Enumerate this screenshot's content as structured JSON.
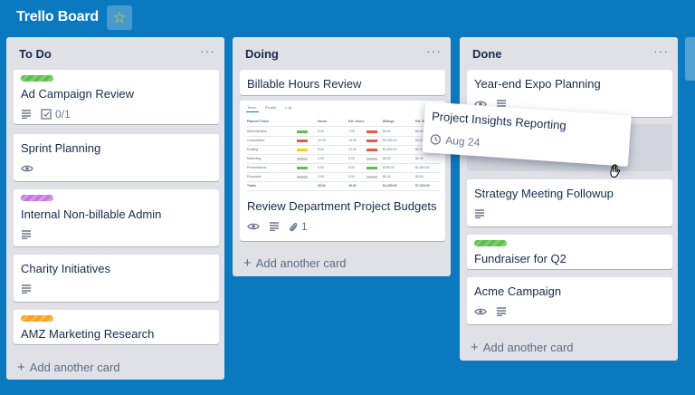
{
  "board": {
    "title": "Trello Board",
    "star_icon": "star-icon"
  },
  "colors": {
    "background": "#0a79bf",
    "list": "#dfe1e6",
    "green": "#61bd4f",
    "purple": "#c377e0",
    "orange": "#ff9f1a"
  },
  "lists": [
    {
      "title": "To Do",
      "menu": "···",
      "add_label": "Add another card",
      "cards": [
        {
          "title": "Ad Campaign Review",
          "label_color": "green",
          "checklist": "0/1"
        },
        {
          "title": "Sprint Planning"
        },
        {
          "title": "Internal Non-billable Admin",
          "label_color": "purple"
        },
        {
          "title": "Charity Initiatives"
        },
        {
          "title": "AMZ Marketing Research",
          "label_color": "orange"
        }
      ]
    },
    {
      "title": "Doing",
      "menu": "···",
      "add_label": "Add another card",
      "cards": [
        {
          "title": "Billable Hours Review"
        },
        {
          "title": "Review Department Project Budgets",
          "attachments": "1",
          "cover": {
            "tabs": [
              "Team",
              "People",
              "Log"
            ],
            "headers": [
              "Planned Tasks",
              "Hours",
              "Est. Hours",
              "Billings",
              "Est. Billings"
            ],
            "rows": [
              [
                "Administration",
                "6.00",
                "7.00",
                "$0.00",
                "$0.00"
              ],
              [
                "Consultation",
                "10.00",
                "15.00",
                "$2,000.00",
                "$3,000.00"
              ],
              [
                "Drafting",
                "8.00",
                "12.00",
                "$1,600.00",
                "$2,400.00"
              ],
              [
                "Marketing",
                "4.00",
                "5.00",
                "$0.00",
                "$0.00"
              ],
              [
                "Presentations",
                "5.00",
                "6.00",
                "$750.00",
                "$1,800.00"
              ],
              [
                "Proposals",
                "2.00",
                "4.00",
                "$0.00",
                "$0.00"
              ],
              [
                "Totals",
                "35.00",
                "49.00",
                "$4,350.00",
                "$7,200.00"
              ]
            ]
          }
        }
      ]
    },
    {
      "title": "Done",
      "menu": "···",
      "add_label": "Add another card",
      "cards": [
        {
          "title": "Year-end Expo Planning"
        },
        {
          "title": "Strategy Meeting Followup"
        },
        {
          "title": "Fundraiser for Q2",
          "label_color": "green"
        },
        {
          "title": "Acme Campaign"
        }
      ]
    }
  ],
  "dragging_card": {
    "title": "Project Insights Reporting",
    "due": "Aug 24"
  }
}
